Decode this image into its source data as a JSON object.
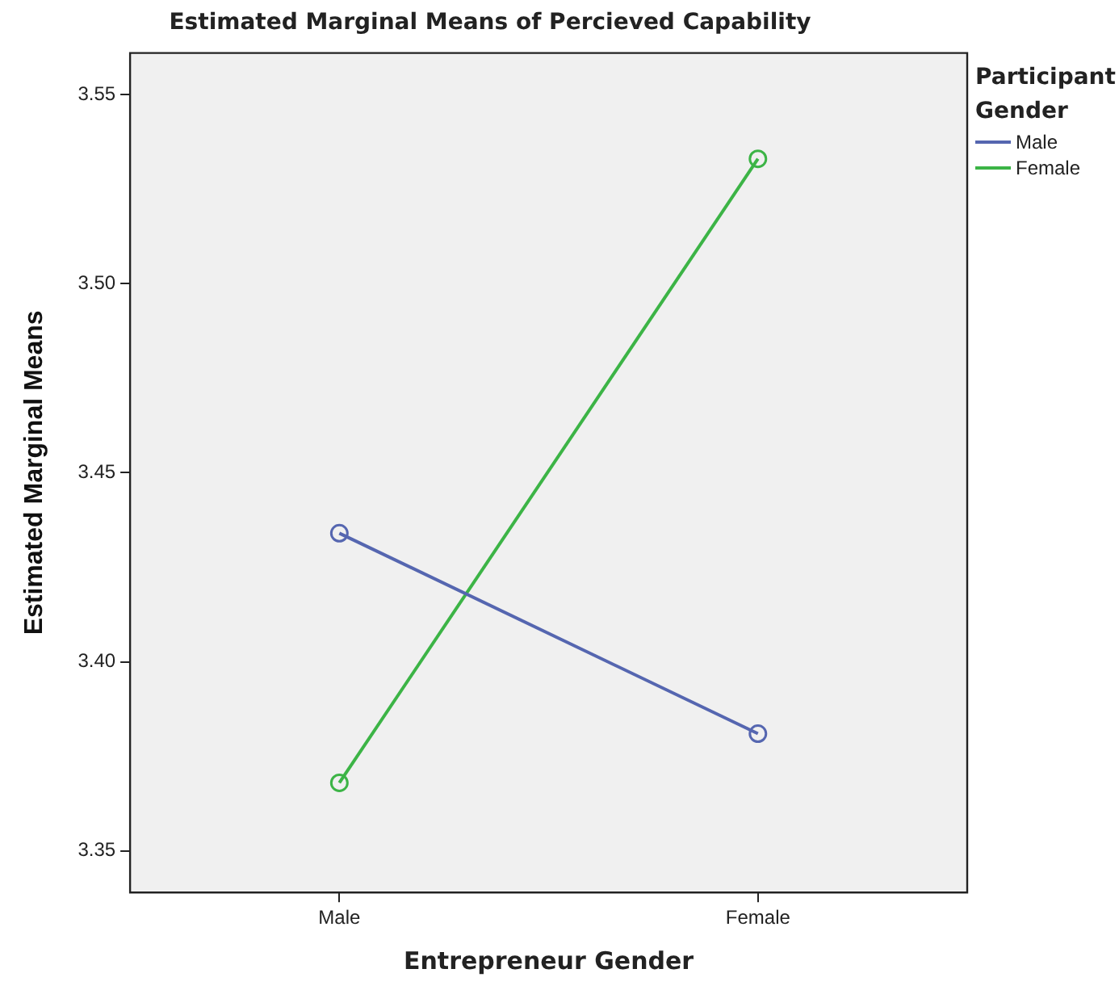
{
  "chart_data": {
    "type": "line",
    "title": "Estimated Marginal Means of Percieved Capability",
    "xlabel": "Entrepreneur Gender",
    "ylabel": "Estimated Marginal Means",
    "legend_title": "Participant Gender",
    "categories": [
      "Male",
      "Female"
    ],
    "series": [
      {
        "name": "Male",
        "color": "#5566b0",
        "values": [
          3.434,
          3.381
        ]
      },
      {
        "name": "Female",
        "color": "#3cb446",
        "values": [
          3.368,
          3.533
        ]
      }
    ],
    "ylim": [
      3.339,
      3.561
    ],
    "yticks": [
      {
        "value": 3.35,
        "label": "3.35"
      },
      {
        "value": 3.4,
        "label": "3.40"
      },
      {
        "value": 3.45,
        "label": "3.45"
      },
      {
        "value": 3.5,
        "label": "3.50"
      },
      {
        "value": 3.55,
        "label": "3.55"
      }
    ],
    "grid": false,
    "legend": "top right",
    "marker": "circle",
    "line_style": "solid"
  }
}
